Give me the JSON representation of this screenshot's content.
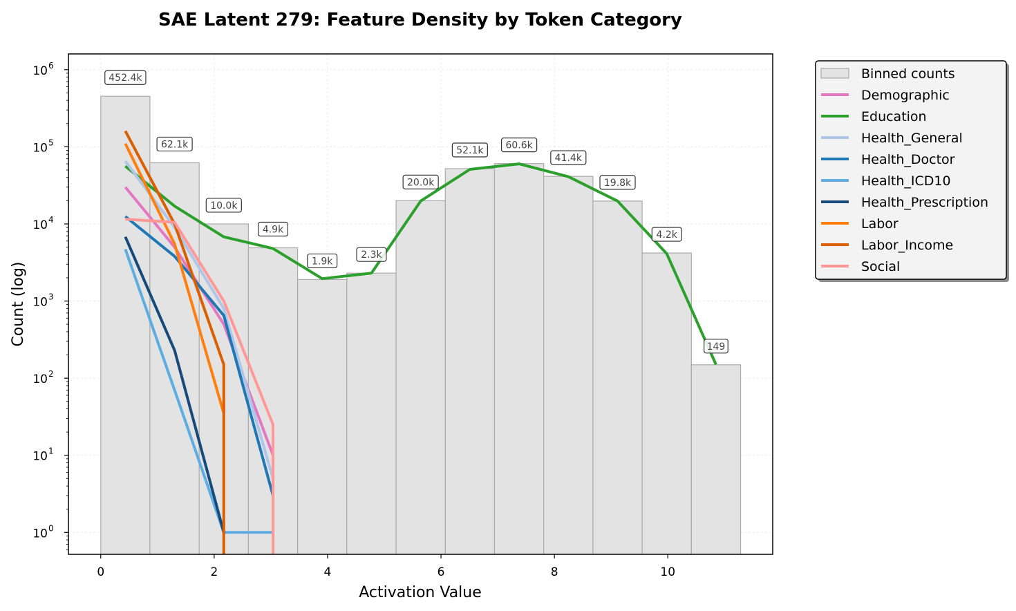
{
  "chart_data": {
    "type": "bar",
    "title": "SAE Latent 279: Feature Density by Token Category",
    "xlabel": "Activation Value",
    "ylabel": "Count (log)",
    "xlim": [
      -0.57,
      11.85
    ],
    "ylim": [
      0.52,
      1600000
    ],
    "yscale": "log",
    "grid": true,
    "legend_position": "outside-right",
    "x_ticks": [
      {
        "value": 0,
        "label": "0"
      },
      {
        "value": 2,
        "label": "2"
      },
      {
        "value": 4,
        "label": "4"
      },
      {
        "value": 6,
        "label": "6"
      },
      {
        "value": 8,
        "label": "8"
      },
      {
        "value": 10,
        "label": "10"
      }
    ],
    "y_ticks": [
      {
        "value": 1,
        "base": "10",
        "exp": "0"
      },
      {
        "value": 10,
        "base": "10",
        "exp": "1"
      },
      {
        "value": 100,
        "base": "10",
        "exp": "2"
      },
      {
        "value": 1000,
        "base": "10",
        "exp": "3"
      },
      {
        "value": 10000,
        "base": "10",
        "exp": "4"
      },
      {
        "value": 100000,
        "base": "10",
        "exp": "5"
      },
      {
        "value": 1000000,
        "base": "10",
        "exp": "6"
      }
    ],
    "histogram": {
      "name": "Binned counts",
      "color": "#e3e3e3",
      "edge_color": "#aaaaaa",
      "bin_edges": [
        0,
        0.868,
        1.736,
        2.604,
        3.472,
        4.34,
        5.208,
        6.076,
        6.944,
        7.812,
        8.68,
        9.548,
        10.416,
        11.284
      ],
      "counts": [
        452400,
        62100,
        10000,
        4900,
        1900,
        2300,
        20000,
        52100,
        60600,
        41400,
        19800,
        4200,
        149
      ],
      "labels": [
        "452.4k",
        "62.1k",
        "10.0k",
        "4.9k",
        "1.9k",
        "2.3k",
        "20.0k",
        "52.1k",
        "60.6k",
        "41.4k",
        "19.8k",
        "4.2k",
        "149"
      ]
    },
    "series": [
      {
        "name": "Demographic",
        "color": "#e377c2",
        "x": [
          0.434,
          1.302,
          2.17,
          3.038
        ],
        "y": [
          30000,
          5000,
          500,
          10
        ]
      },
      {
        "name": "Education",
        "color": "#2ca02c",
        "x": [
          0.434,
          1.302,
          2.17,
          3.038,
          3.906,
          4.774,
          5.642,
          6.51,
          7.378,
          8.246,
          9.114,
          9.982,
          10.85
        ],
        "y": [
          56000,
          17000,
          6800,
          4800,
          1950,
          2300,
          19800,
          51000,
          60000,
          41000,
          19800,
          4100,
          150
        ]
      },
      {
        "name": "Health_General",
        "color": "#aec7e8",
        "x": [
          0.434,
          1.302,
          2.17,
          3.038
        ],
        "y": [
          65000,
          9000,
          800,
          5
        ]
      },
      {
        "name": "Health_Doctor",
        "color": "#1f77b4",
        "x": [
          0.434,
          1.302,
          2.17,
          3.038
        ],
        "y": [
          12500,
          3800,
          650,
          3
        ]
      },
      {
        "name": "Health_ICD10",
        "color": "#5dade2",
        "x": [
          0.434,
          1.302,
          2.17,
          2.17,
          3.038
        ],
        "y": [
          4700,
          70,
          1,
          1,
          1
        ]
      },
      {
        "name": "Health_Prescription",
        "color": "#174a7c",
        "x": [
          0.434,
          1.302,
          2.17
        ],
        "y": [
          6800,
          230,
          1
        ]
      },
      {
        "name": "Labor",
        "color": "#ff7f0e",
        "x": [
          0.434,
          1.302,
          2.17
        ],
        "y": [
          110000,
          5500,
          35
        ]
      },
      {
        "name": "Labor_Income",
        "color": "#d95f02",
        "x": [
          0.434,
          1.302,
          2.17
        ],
        "y": [
          160000,
          10000,
          150
        ]
      },
      {
        "name": "Social",
        "color": "#ff9896",
        "x": [
          0.434,
          1.302,
          2.17,
          3.038
        ],
        "y": [
          11500,
          10500,
          1000,
          25
        ]
      }
    ]
  }
}
